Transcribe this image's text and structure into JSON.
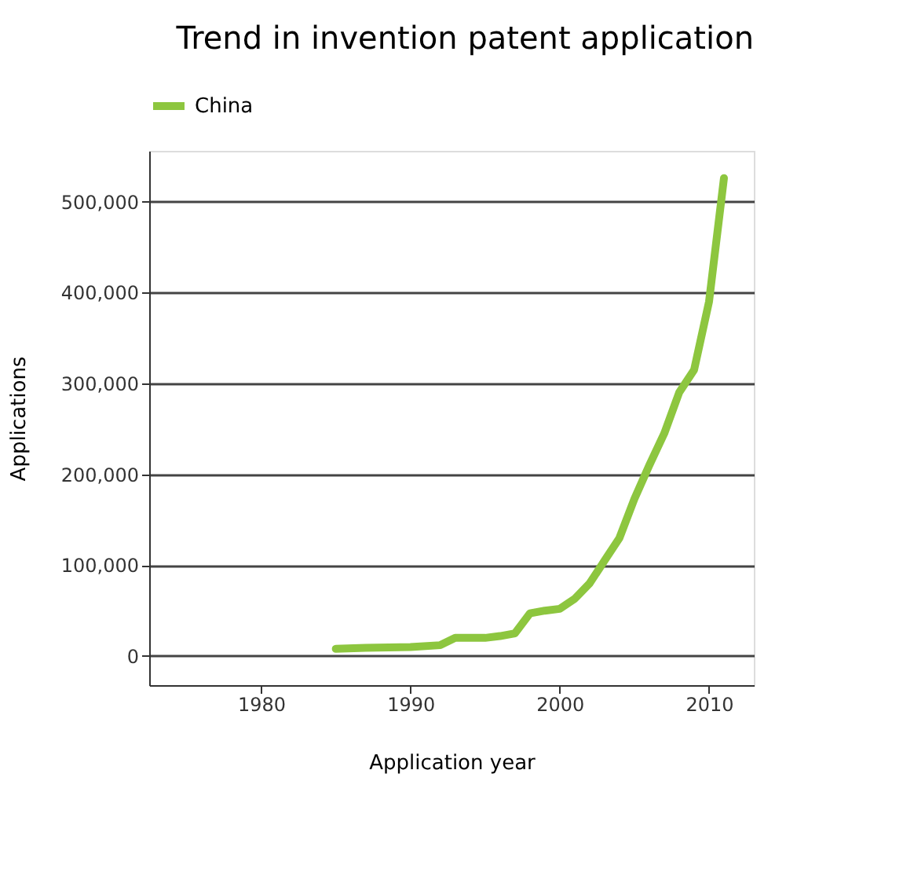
{
  "chart_data": {
    "type": "line",
    "title": "Trend in invention patent application",
    "xlabel": "Application year",
    "ylabel": "Applications",
    "x": [
      1985,
      1987,
      1990,
      1992,
      1993,
      1995,
      1996,
      1997,
      1998,
      1999,
      2000,
      2001,
      2002,
      2003,
      2004,
      2005,
      2006,
      2007,
      2008,
      2009,
      2010,
      2011
    ],
    "series": [
      {
        "name": "China",
        "color": "#8dc63f",
        "values": [
          8000,
          9000,
          10000,
          12000,
          20000,
          20000,
          22000,
          25000,
          47000,
          50000,
          52000,
          63000,
          80000,
          105000,
          130000,
          173000,
          210000,
          245000,
          290000,
          315000,
          390000,
          526000
        ]
      }
    ],
    "xlim": [
      1972.5,
      2013
    ],
    "xticks": [
      1980,
      1990,
      2000,
      2010
    ],
    "ylim": [
      -32000,
      556000
    ],
    "yticks": [
      {
        "value": 0,
        "label": "0"
      },
      {
        "value": 100000,
        "label": "100,000"
      },
      {
        "value": 200000,
        "label": "200,000"
      },
      {
        "value": 300000,
        "label": "300,000"
      },
      {
        "value": 400000,
        "label": "400,000"
      },
      {
        "value": 500000,
        "label": "500,000"
      }
    ],
    "grid": "y",
    "legend": "top",
    "line_style": "solid",
    "marker": "none"
  }
}
